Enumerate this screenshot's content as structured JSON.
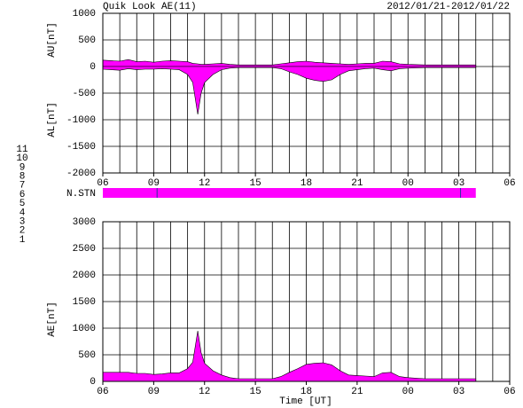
{
  "header": {
    "title": "Quik Look AE(11)",
    "date_range": "2012/01/21-2012/01/22",
    "xlabel": "Time [UT]"
  },
  "legend": [
    {
      "label": "11",
      "color": "#00d8d8"
    },
    {
      "label": "10",
      "color": "#ff00ff"
    },
    {
      "label": "9",
      "color": "#3030c0"
    },
    {
      "label": "8",
      "color": "#e8e860"
    },
    {
      "label": "7",
      "color": "#80e880"
    },
    {
      "label": "6",
      "color": "#ff0000"
    },
    {
      "label": "5",
      "color": "#d0d0d0"
    },
    {
      "label": "4",
      "color": "#a8a8a8"
    },
    {
      "label": "3",
      "color": "#00a0a0"
    },
    {
      "label": "2",
      "color": "#a000a0"
    },
    {
      "label": "1",
      "color": "#0000c0"
    }
  ],
  "station_bar": {
    "label": "N.STN",
    "color": "#ff00ff",
    "coverage": [
      6,
      28
    ],
    "markers": [
      9.2,
      27.1
    ]
  },
  "chart_data": [
    {
      "type": "area",
      "ylabel_top": "AU[nT]",
      "ylabel_bottom": "AL[nT]",
      "x": [
        6,
        6.5,
        7,
        7.5,
        8,
        8.5,
        9,
        9.5,
        10,
        10.5,
        11,
        11.3,
        11.6,
        11.8,
        12,
        12.5,
        13,
        13.5,
        14,
        15,
        16,
        16.5,
        17,
        17.5,
        18,
        18.5,
        19,
        19.5,
        20,
        20.5,
        21,
        21.5,
        22,
        22.5,
        23,
        23.5,
        24,
        25,
        26,
        27,
        28
      ],
      "series": [
        {
          "color": "#ff00ff",
          "values": [
            120,
            110,
            100,
            130,
            90,
            100,
            80,
            100,
            110,
            100,
            90,
            60,
            50,
            40,
            40,
            50,
            60,
            40,
            30,
            30,
            30,
            50,
            70,
            90,
            100,
            80,
            70,
            60,
            50,
            40,
            50,
            60,
            60,
            100,
            90,
            50,
            40,
            30,
            30,
            30,
            30
          ]
        },
        {
          "color": "#ff00ff",
          "values": [
            -50,
            -60,
            -70,
            -40,
            -60,
            -50,
            -50,
            -40,
            -50,
            -60,
            -150,
            -300,
            -900,
            -500,
            -300,
            -150,
            -60,
            -30,
            -20,
            -20,
            -20,
            -40,
            -100,
            -150,
            -220,
            -260,
            -280,
            -250,
            -150,
            -80,
            -60,
            -40,
            -30,
            -60,
            -80,
            -40,
            -30,
            -20,
            -20,
            -20,
            -20
          ]
        }
      ],
      "xlim": [
        6,
        30
      ],
      "minor_grid_step": 1,
      "xticks": [
        {
          "value": 6,
          "label": "06"
        },
        {
          "value": 9,
          "label": "09"
        },
        12,
        15,
        18,
        21,
        {
          "value": 24,
          "label": "00"
        },
        {
          "value": 27,
          "label": "03"
        },
        {
          "value": 30,
          "label": "06"
        }
      ],
      "ylim": [
        -2000,
        1000
      ],
      "yticks": [
        1000,
        500,
        0,
        -500,
        -1000,
        -1500,
        -2000
      ],
      "grid": true
    },
    {
      "type": "area",
      "ylabel_top": "AE[nT]",
      "x": [
        6,
        6.5,
        7,
        7.5,
        8,
        8.5,
        9,
        9.5,
        10,
        10.5,
        11,
        11.3,
        11.6,
        11.8,
        12,
        12.5,
        13,
        13.5,
        14,
        15,
        16,
        16.5,
        17,
        17.5,
        18,
        18.5,
        19,
        19.5,
        20,
        20.5,
        21,
        21.5,
        22,
        22.5,
        23,
        23.5,
        24,
        25,
        26,
        27,
        28
      ],
      "series": [
        {
          "color": "#ff00ff",
          "values": [
            170,
            170,
            170,
            170,
            150,
            150,
            130,
            140,
            160,
            160,
            240,
            360,
            950,
            540,
            340,
            200,
            120,
            70,
            50,
            50,
            50,
            90,
            170,
            240,
            320,
            340,
            350,
            310,
            200,
            120,
            110,
            100,
            90,
            160,
            170,
            90,
            70,
            50,
            50,
            50,
            50
          ]
        }
      ],
      "xlim": [
        6,
        30
      ],
      "minor_grid_step": 1,
      "xticks": [
        {
          "value": 6,
          "label": "06"
        },
        {
          "value": 9,
          "label": "09"
        },
        12,
        15,
        18,
        21,
        {
          "value": 24,
          "label": "00"
        },
        {
          "value": 27,
          "label": "03"
        },
        {
          "value": 30,
          "label": "06"
        }
      ],
      "ylim": [
        0,
        3000
      ],
      "yticks": [
        3000,
        2500,
        2000,
        1500,
        1000,
        500,
        0
      ],
      "grid": true
    }
  ]
}
